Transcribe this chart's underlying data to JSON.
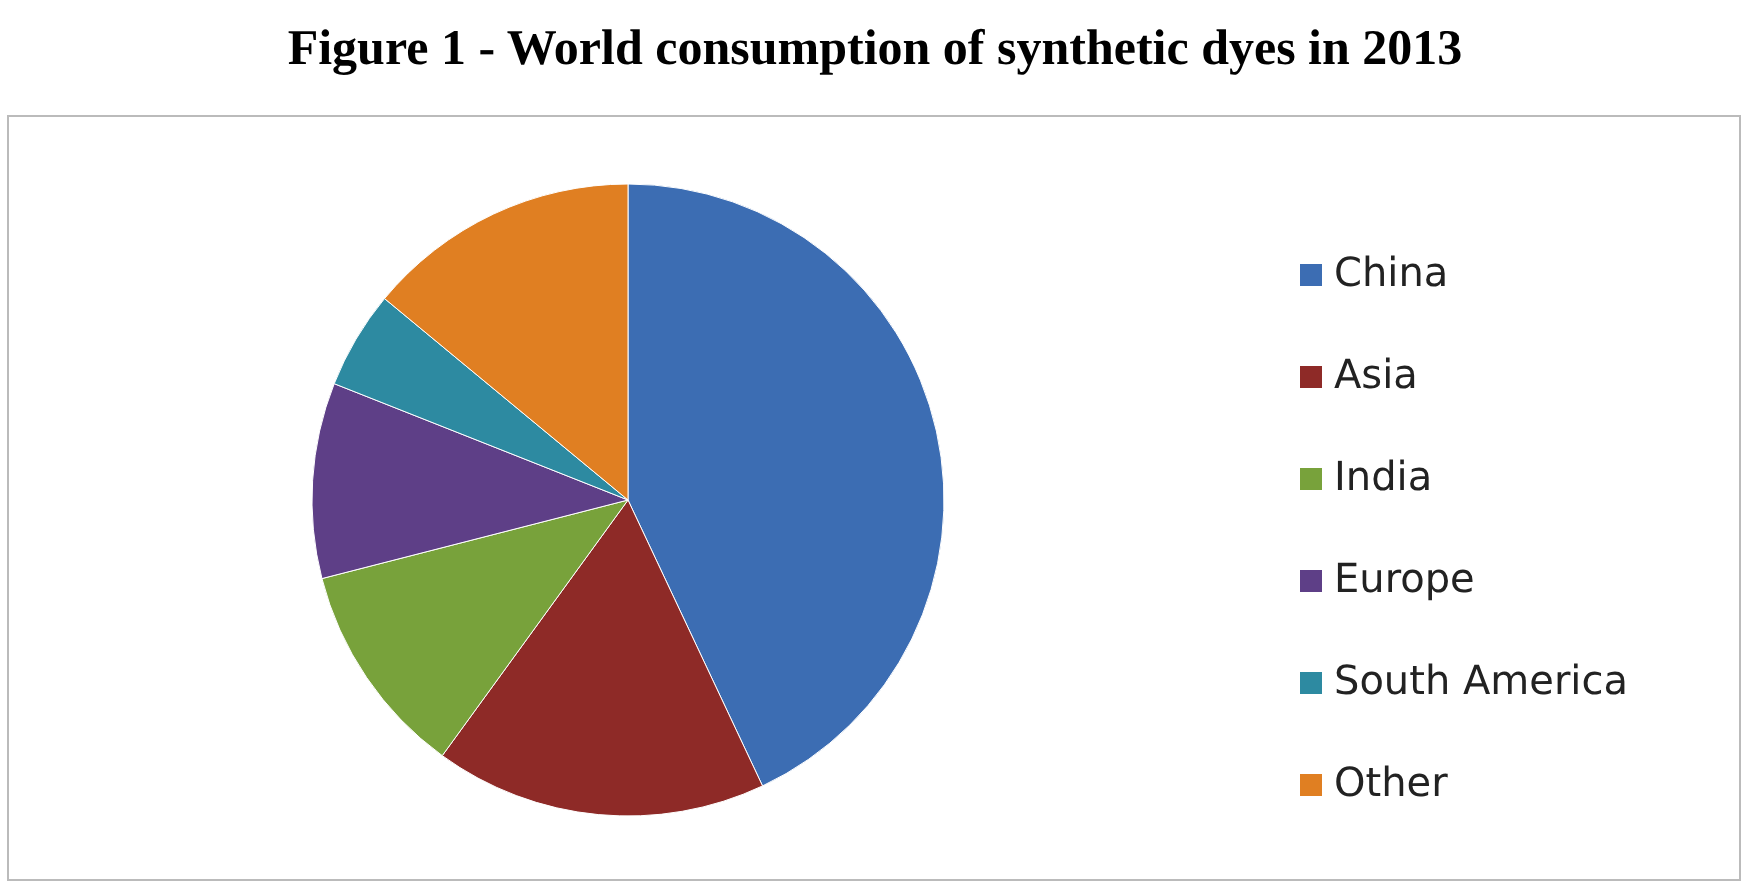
{
  "chart_data": {
    "type": "pie",
    "title": "Figure 1 - World consumption of synthetic dyes in 2013",
    "categories": [
      "China",
      "Asia",
      "India",
      "Europe",
      "South America",
      "Other"
    ],
    "values": [
      43,
      17,
      11,
      10,
      5,
      14
    ],
    "colors": [
      "#3c6db3",
      "#8e2a27",
      "#78a23b",
      "#5e3f87",
      "#2d8aa1",
      "#e07f22"
    ],
    "legend": "right"
  }
}
